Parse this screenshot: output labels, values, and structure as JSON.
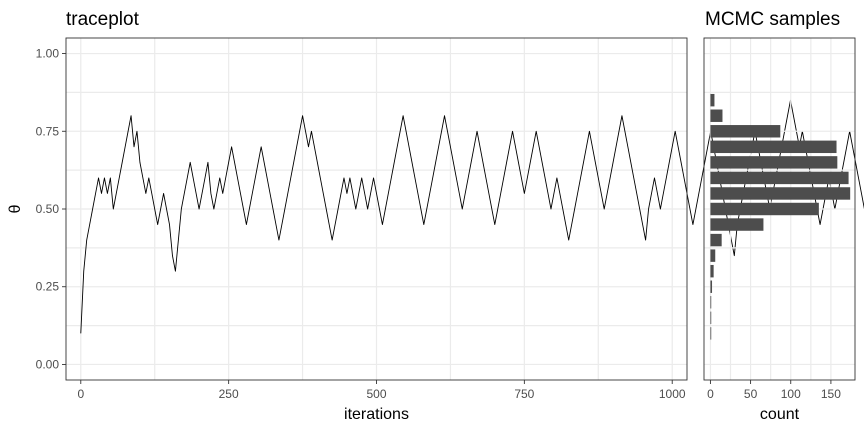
{
  "chart_data": [
    {
      "type": "line",
      "title": "traceplot",
      "xlabel": "iterations",
      "ylabel": "θ",
      "xlim": [
        -25,
        1025
      ],
      "ylim": [
        -0.05,
        1.05
      ],
      "grid": true,
      "x_ticks": [
        {
          "value": 0,
          "label": "0"
        },
        {
          "value": 250,
          "label": "250"
        },
        {
          "value": 500,
          "label": "500"
        },
        {
          "value": 750,
          "label": "750"
        },
        {
          "value": 1000,
          "label": "1000"
        }
      ],
      "y_ticks": [
        {
          "value": 0.0,
          "label": "0.00"
        },
        {
          "value": 0.25,
          "label": "0.25"
        },
        {
          "value": 0.5,
          "label": "0.50"
        },
        {
          "value": 0.75,
          "label": "0.75"
        },
        {
          "value": 1.0,
          "label": "1.00"
        }
      ],
      "series": [
        {
          "color": "#000000",
          "x_start": 0,
          "x_step": 5,
          "values": [
            0.1,
            0.3,
            0.4,
            0.45,
            0.5,
            0.55,
            0.6,
            0.55,
            0.6,
            0.55,
            0.6,
            0.5,
            0.55,
            0.6,
            0.65,
            0.7,
            0.75,
            0.8,
            0.7,
            0.75,
            0.65,
            0.6,
            0.55,
            0.6,
            0.55,
            0.5,
            0.45,
            0.5,
            0.55,
            0.5,
            0.45,
            0.35,
            0.3,
            0.4,
            0.5,
            0.55,
            0.6,
            0.65,
            0.6,
            0.55,
            0.5,
            0.55,
            0.6,
            0.65,
            0.55,
            0.5,
            0.55,
            0.6,
            0.55,
            0.6,
            0.65,
            0.7,
            0.65,
            0.6,
            0.55,
            0.5,
            0.45,
            0.5,
            0.55,
            0.6,
            0.65,
            0.7,
            0.65,
            0.6,
            0.55,
            0.5,
            0.45,
            0.4,
            0.45,
            0.5,
            0.55,
            0.6,
            0.65,
            0.7,
            0.75,
            0.8,
            0.75,
            0.7,
            0.75,
            0.7,
            0.65,
            0.6,
            0.55,
            0.5,
            0.45,
            0.4,
            0.45,
            0.5,
            0.55,
            0.6,
            0.55,
            0.6,
            0.55,
            0.5,
            0.55,
            0.6,
            0.55,
            0.5,
            0.55,
            0.6,
            0.55,
            0.5,
            0.45,
            0.5,
            0.55,
            0.6,
            0.65,
            0.7,
            0.75,
            0.8,
            0.75,
            0.7,
            0.65,
            0.6,
            0.55,
            0.5,
            0.45,
            0.5,
            0.55,
            0.6,
            0.65,
            0.7,
            0.75,
            0.8,
            0.75,
            0.7,
            0.65,
            0.6,
            0.55,
            0.5,
            0.55,
            0.6,
            0.65,
            0.7,
            0.75,
            0.7,
            0.65,
            0.6,
            0.55,
            0.5,
            0.45,
            0.5,
            0.55,
            0.6,
            0.65,
            0.7,
            0.75,
            0.7,
            0.65,
            0.6,
            0.55,
            0.6,
            0.65,
            0.7,
            0.75,
            0.7,
            0.65,
            0.6,
            0.55,
            0.5,
            0.55,
            0.6,
            0.55,
            0.5,
            0.45,
            0.4,
            0.45,
            0.5,
            0.55,
            0.6,
            0.65,
            0.7,
            0.75,
            0.7,
            0.65,
            0.6,
            0.55,
            0.5,
            0.55,
            0.6,
            0.65,
            0.7,
            0.75,
            0.8,
            0.75,
            0.7,
            0.65,
            0.6,
            0.55,
            0.5,
            0.45,
            0.4,
            0.5,
            0.55,
            0.6,
            0.55,
            0.5,
            0.55,
            0.6,
            0.65,
            0.7,
            0.75,
            0.7,
            0.65,
            0.6,
            0.55,
            0.5,
            0.45,
            0.5,
            0.55,
            0.6,
            0.65,
            0.7,
            0.75,
            0.7,
            0.65,
            0.6,
            0.55,
            0.5,
            0.45,
            0.4,
            0.35,
            0.45,
            0.5,
            0.55,
            0.6,
            0.65,
            0.7,
            0.75,
            0.7,
            0.65,
            0.6,
            0.55,
            0.5,
            0.55,
            0.6,
            0.65,
            0.7,
            0.75,
            0.8,
            0.85,
            0.8,
            0.75,
            0.7,
            0.75,
            0.7,
            0.65,
            0.6,
            0.55,
            0.5,
            0.45,
            0.5,
            0.55,
            0.6,
            0.55,
            0.5,
            0.55,
            0.6,
            0.65,
            0.7,
            0.75,
            0.7,
            0.65,
            0.6,
            0.55,
            0.5,
            0.45,
            0.4,
            0.45,
            0.5,
            0.55,
            0.6,
            0.65,
            0.7,
            0.75,
            0.7,
            0.65,
            0.6,
            0.65,
            0.7,
            0.75,
            0.8,
            0.75,
            0.7,
            0.75
          ]
        }
      ]
    },
    {
      "type": "bar",
      "orientation": "horizontal",
      "title": "MCMC samples",
      "xlabel": "count",
      "ylabel": "",
      "xlim": [
        -8,
        180
      ],
      "ylim": [
        -0.05,
        1.05
      ],
      "grid": true,
      "x_ticks": [
        {
          "value": 0,
          "label": "0"
        },
        {
          "value": 50,
          "label": "50"
        },
        {
          "value": 100,
          "label": "100"
        },
        {
          "value": 150,
          "label": "150"
        }
      ],
      "bar_color": "#4d4d4d",
      "bins": [
        0.1,
        0.15,
        0.2,
        0.25,
        0.3,
        0.35,
        0.4,
        0.45,
        0.5,
        0.55,
        0.6,
        0.65,
        0.7,
        0.75,
        0.8,
        0.85
      ],
      "values": [
        1,
        1,
        1,
        2,
        4,
        6,
        14,
        66,
        135,
        174,
        172,
        158,
        157,
        87,
        15,
        5
      ]
    }
  ]
}
